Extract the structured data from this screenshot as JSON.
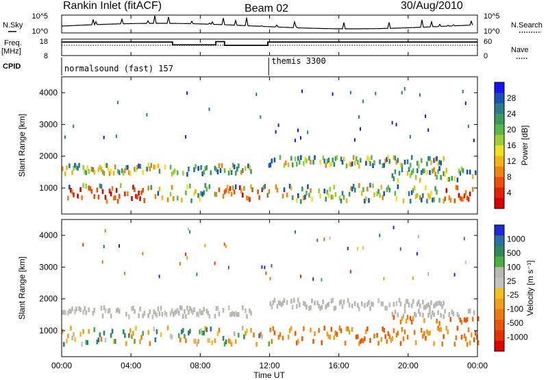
{
  "header": {
    "station": "Rankin Inlet (fitACF)",
    "beam": "Beam 02",
    "date": "30/Aug/2010"
  },
  "left_labels": {
    "nsky": "N.Sky",
    "freq": "Freq.",
    "freq_unit": "[MHz]",
    "cpid": "CPID"
  },
  "right_labels": {
    "nsearch": "N.Search",
    "nave": "Nave"
  },
  "cpid_segments": [
    {
      "label": "normalsound (fast) 157",
      "start_ut": 0
    },
    {
      "label": "themis 3300",
      "start_ut": 11.95
    }
  ],
  "x_axis": {
    "label": "Time UT",
    "ticks": [
      "00:00",
      "04:00",
      "08:00",
      "12:00",
      "16:00",
      "20:00",
      "00:00"
    ]
  },
  "chart_data": [
    {
      "type": "line",
      "name": "noise",
      "yticks_left": [
        "10^5",
        "10^0"
      ],
      "yticks_right": [
        "10^5",
        "10^0"
      ]
    },
    {
      "type": "line",
      "name": "frequency",
      "yticks_left": [
        "18",
        "8"
      ],
      "yticks_right": [
        "60",
        "0"
      ],
      "freq_steps": [
        {
          "start_ut": 0,
          "end_ut": 6.4,
          "level": 0.82
        },
        {
          "start_ut": 6.4,
          "end_ut": 8.9,
          "level": 0.65
        },
        {
          "start_ut": 8.9,
          "end_ut": 9.4,
          "level": 0.85
        },
        {
          "start_ut": 9.4,
          "end_ut": 11.9,
          "level": 0.62
        },
        {
          "start_ut": 11.9,
          "end_ut": 24,
          "level": 0.82
        }
      ]
    },
    {
      "type": "heatmap",
      "name": "power",
      "ylabel": "Slant Range [km]",
      "yticks": [
        "1000",
        "2000",
        "3000",
        "4000"
      ],
      "ylim": [
        180,
        4500
      ],
      "colorbar": {
        "label": "Power [dB]",
        "ticks": [
          "4",
          "8",
          "12",
          "16",
          "20",
          "24",
          "28"
        ],
        "colors": [
          "#1515f0",
          "#1a4fb8",
          "#2b7d8c",
          "#3a9a5a",
          "#58b84a",
          "#9ccf35",
          "#f0e020",
          "#f4b418",
          "#f08410",
          "#ec5008",
          "#e62004",
          "#d80000"
        ]
      }
    },
    {
      "type": "heatmap",
      "name": "velocity",
      "ylabel": "Slant Range [km]",
      "yticks": [
        "1000",
        "2000",
        "3000",
        "4000"
      ],
      "ylim": [
        180,
        4500
      ],
      "colorbar": {
        "label": "Velocity [m s⁻¹]",
        "ticks": [
          "1000",
          "500",
          "100",
          "25",
          "-25",
          "-100",
          "-500",
          "-1000"
        ],
        "colors": [
          "#1c2ad8",
          "#2c6fa2",
          "#2e8a5a",
          "#48b040",
          "#b8b8b0",
          "#c2c2c2",
          "#f4c020",
          "#f2a018",
          "#ee7a10",
          "#ec5808",
          "#e83004",
          "#e00000"
        ]
      }
    }
  ]
}
